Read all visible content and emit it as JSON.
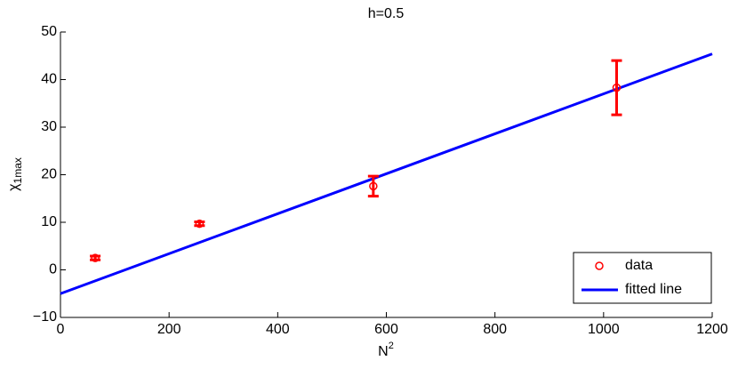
{
  "chart_data": {
    "type": "scatter_fit",
    "title": "h=0.5",
    "xlabel": {
      "text": "N",
      "sup": "2"
    },
    "ylabel": {
      "text": "χ",
      "sub": "1max"
    },
    "xlim": [
      0,
      1200
    ],
    "xticks": [
      0,
      200,
      400,
      600,
      800,
      1000,
      1200
    ],
    "ylim": [
      -10,
      50
    ],
    "yticks": [
      {
        "value": -10,
        "label": "−10"
      },
      0,
      10,
      20,
      30,
      40,
      50
    ],
    "legend": "southeast",
    "series": [
      {
        "name": "data",
        "color": "#ff0000",
        "x": [
          64,
          256,
          576,
          1024
        ],
        "values": [
          2.5,
          9.7,
          17.6,
          38.3
        ],
        "errors": [
          0.4,
          0.4,
          2.1,
          5.7
        ]
      },
      {
        "name": "fitted line",
        "color": "#0000ff",
        "x": [
          0,
          1200
        ],
        "values": [
          -5,
          45.4
        ]
      }
    ]
  }
}
